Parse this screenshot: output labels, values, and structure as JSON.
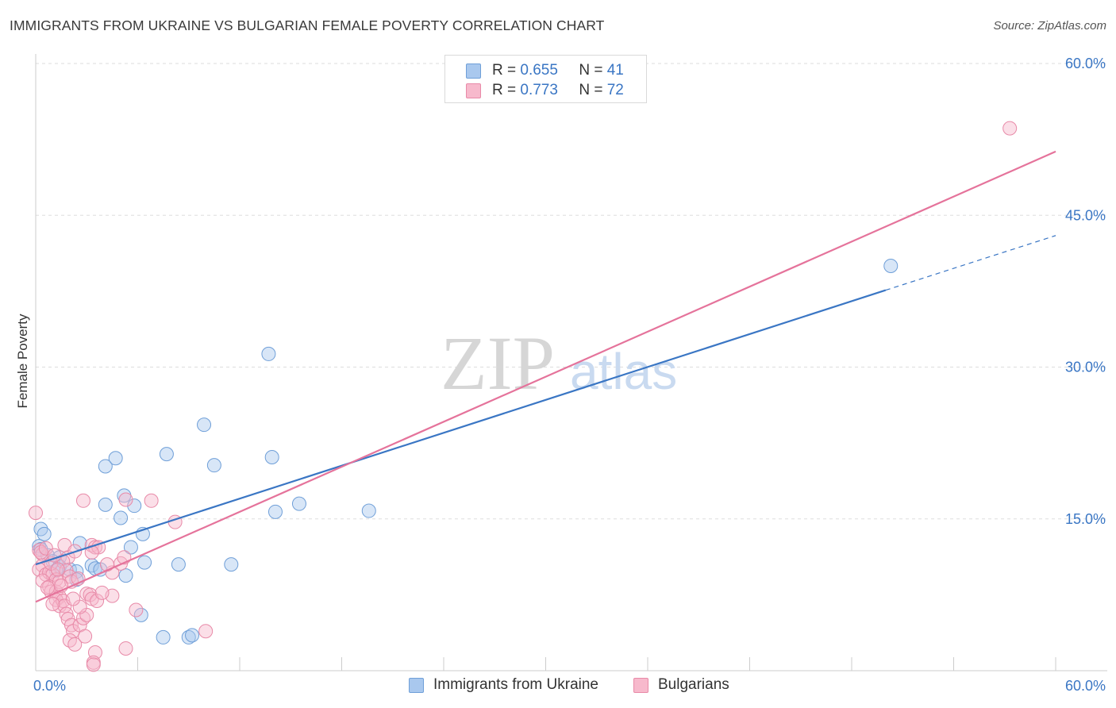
{
  "title": "IMMIGRANTS FROM UKRAINE VS BULGARIAN FEMALE POVERTY CORRELATION CHART",
  "source": "Source: ZipAtlas.com",
  "watermark": {
    "zip": "ZIP",
    "atlas": "atlas"
  },
  "legend": {
    "r_label": "R =",
    "n_label": "N =",
    "ukraine": {
      "r": "0.655",
      "n": "41",
      "color": "#a9c8ee",
      "stroke": "#6f9fd8"
    },
    "bulgarians": {
      "r": "0.773",
      "n": "72",
      "color": "#f7b9cc",
      "stroke": "#e88aa8"
    }
  },
  "bottom_legend": {
    "ukraine_label": "Immigrants from Ukraine",
    "bulgarians_label": "Bulgarians"
  },
  "chart_data": {
    "type": "scatter",
    "title": "IMMIGRANTS FROM UKRAINE VS BULGARIAN FEMALE POVERTY CORRELATION CHART",
    "xlabel": "",
    "ylabel": "Female Poverty",
    "xlim": [
      0,
      60
    ],
    "ylim": [
      0,
      60
    ],
    "x_tick_labels": [
      "0.0%",
      "60.0%"
    ],
    "y_tick_values": [
      15,
      30,
      45,
      60
    ],
    "y_tick_labels": [
      "15.0%",
      "30.0%",
      "45.0%",
      "60.0%"
    ],
    "series": [
      {
        "name": "Immigrants from Ukraine",
        "color": "#6f9fd8",
        "trend": {
          "x0": 0,
          "y0": 10.5,
          "x1": 50,
          "y1": 37.6,
          "dash_to_x": 60,
          "dash_to_y": 43.0
        },
        "points": [
          [
            0.3,
            14.0
          ],
          [
            0.5,
            13.5
          ],
          [
            0.2,
            12.3
          ],
          [
            0.3,
            12.0
          ],
          [
            0.7,
            11.4
          ],
          [
            1.4,
            11.2
          ],
          [
            1.0,
            10.8
          ],
          [
            1.4,
            10.3
          ],
          [
            2.0,
            10.0
          ],
          [
            2.6,
            12.6
          ],
          [
            3.3,
            10.4
          ],
          [
            3.5,
            10.1
          ],
          [
            3.8,
            10.0
          ],
          [
            1.2,
            9.9
          ],
          [
            2.4,
            9.8
          ],
          [
            2.4,
            9.0
          ],
          [
            4.1,
            20.2
          ],
          [
            4.7,
            21.0
          ],
          [
            4.1,
            16.4
          ],
          [
            5.2,
            17.3
          ],
          [
            5.0,
            15.1
          ],
          [
            5.8,
            16.3
          ],
          [
            5.6,
            12.2
          ],
          [
            6.3,
            13.5
          ],
          [
            5.3,
            9.4
          ],
          [
            6.4,
            10.7
          ],
          [
            6.2,
            5.5
          ],
          [
            7.5,
            3.3
          ],
          [
            7.7,
            21.4
          ],
          [
            8.4,
            10.5
          ],
          [
            9.9,
            24.3
          ],
          [
            10.5,
            20.3
          ],
          [
            11.5,
            10.5
          ],
          [
            13.7,
            31.3
          ],
          [
            13.9,
            21.1
          ],
          [
            14.1,
            15.7
          ],
          [
            15.5,
            16.5
          ],
          [
            19.6,
            15.8
          ],
          [
            9.0,
            3.3
          ],
          [
            9.2,
            3.5
          ],
          [
            50.3,
            40.0
          ]
        ]
      },
      {
        "name": "Bulgarians",
        "color": "#e88aa8",
        "trend": {
          "x0": 0,
          "y0": 6.8,
          "x1": 60,
          "y1": 51.3
        },
        "points": [
          [
            0.0,
            15.6
          ],
          [
            0.2,
            11.9
          ],
          [
            0.4,
            11.5
          ],
          [
            0.4,
            10.4
          ],
          [
            0.2,
            10.0
          ],
          [
            0.6,
            9.5
          ],
          [
            0.8,
            9.7
          ],
          [
            1.0,
            9.5
          ],
          [
            0.4,
            8.9
          ],
          [
            1.2,
            9.0
          ],
          [
            0.8,
            8.3
          ],
          [
            0.9,
            7.8
          ],
          [
            1.2,
            7.8
          ],
          [
            1.4,
            7.3
          ],
          [
            1.4,
            8.8
          ],
          [
            1.2,
            7.0
          ],
          [
            1.4,
            6.4
          ],
          [
            1.6,
            6.9
          ],
          [
            1.7,
            6.4
          ],
          [
            1.9,
            11.2
          ],
          [
            1.7,
            12.4
          ],
          [
            1.6,
            10.8
          ],
          [
            1.8,
            9.9
          ],
          [
            2.3,
            11.8
          ],
          [
            2.0,
            9.3
          ],
          [
            2.1,
            8.8
          ],
          [
            1.8,
            5.6
          ],
          [
            1.9,
            5.1
          ],
          [
            2.1,
            4.5
          ],
          [
            2.2,
            3.9
          ],
          [
            2.0,
            3.0
          ],
          [
            2.3,
            2.6
          ],
          [
            2.6,
            4.5
          ],
          [
            2.8,
            5.2
          ],
          [
            2.9,
            3.4
          ],
          [
            3.0,
            5.5
          ],
          [
            3.0,
            7.6
          ],
          [
            3.2,
            7.5
          ],
          [
            3.3,
            7.1
          ],
          [
            3.3,
            12.4
          ],
          [
            3.5,
            12.2
          ],
          [
            3.6,
            6.9
          ],
          [
            2.8,
            16.8
          ],
          [
            3.7,
            12.2
          ],
          [
            3.3,
            11.7
          ],
          [
            4.5,
            7.4
          ],
          [
            4.5,
            9.7
          ],
          [
            5.0,
            10.6
          ],
          [
            5.2,
            11.2
          ],
          [
            5.3,
            16.9
          ],
          [
            5.9,
            6.0
          ],
          [
            5.3,
            2.2
          ],
          [
            6.8,
            16.8
          ],
          [
            8.2,
            14.7
          ],
          [
            3.5,
            1.8
          ],
          [
            3.4,
            0.8
          ],
          [
            3.4,
            0.6
          ],
          [
            10.0,
            3.9
          ],
          [
            0.3,
            11.7
          ],
          [
            0.6,
            12.1
          ],
          [
            0.9,
            10.6
          ],
          [
            1.1,
            11.4
          ],
          [
            1.3,
            10.0
          ],
          [
            1.5,
            8.4
          ],
          [
            2.5,
            9.1
          ],
          [
            2.6,
            6.3
          ],
          [
            3.9,
            7.7
          ],
          [
            4.2,
            10.5
          ],
          [
            2.2,
            7.1
          ],
          [
            1.0,
            6.6
          ],
          [
            0.7,
            8.2
          ],
          [
            57.3,
            53.6
          ]
        ]
      }
    ]
  }
}
